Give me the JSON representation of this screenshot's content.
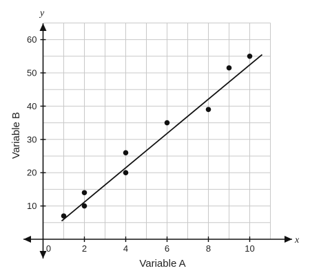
{
  "chart_data": {
    "type": "scatter",
    "xlabel": "Variable A",
    "ylabel": "Variable B",
    "x_axis_var": "x",
    "y_axis_var": "y",
    "xlim": [
      -1,
      12
    ],
    "ylim": [
      -5,
      66
    ],
    "grid": true,
    "x_ticks": [
      "0",
      "2",
      "4",
      "6",
      "8",
      "10"
    ],
    "y_ticks": [
      "10",
      "20",
      "30",
      "40",
      "50",
      "60"
    ],
    "points": [
      {
        "x": 1,
        "y": 7
      },
      {
        "x": 2,
        "y": 14
      },
      {
        "x": 2,
        "y": 10
      },
      {
        "x": 4,
        "y": 26
      },
      {
        "x": 4,
        "y": 20
      },
      {
        "x": 6,
        "y": 35
      },
      {
        "x": 8,
        "y": 39
      },
      {
        "x": 9,
        "y": 51.5
      },
      {
        "x": 10,
        "y": 55
      }
    ],
    "trend_line": {
      "x1": 0.9,
      "y1": 5.5,
      "x2": 10.6,
      "y2": 55.5
    }
  }
}
